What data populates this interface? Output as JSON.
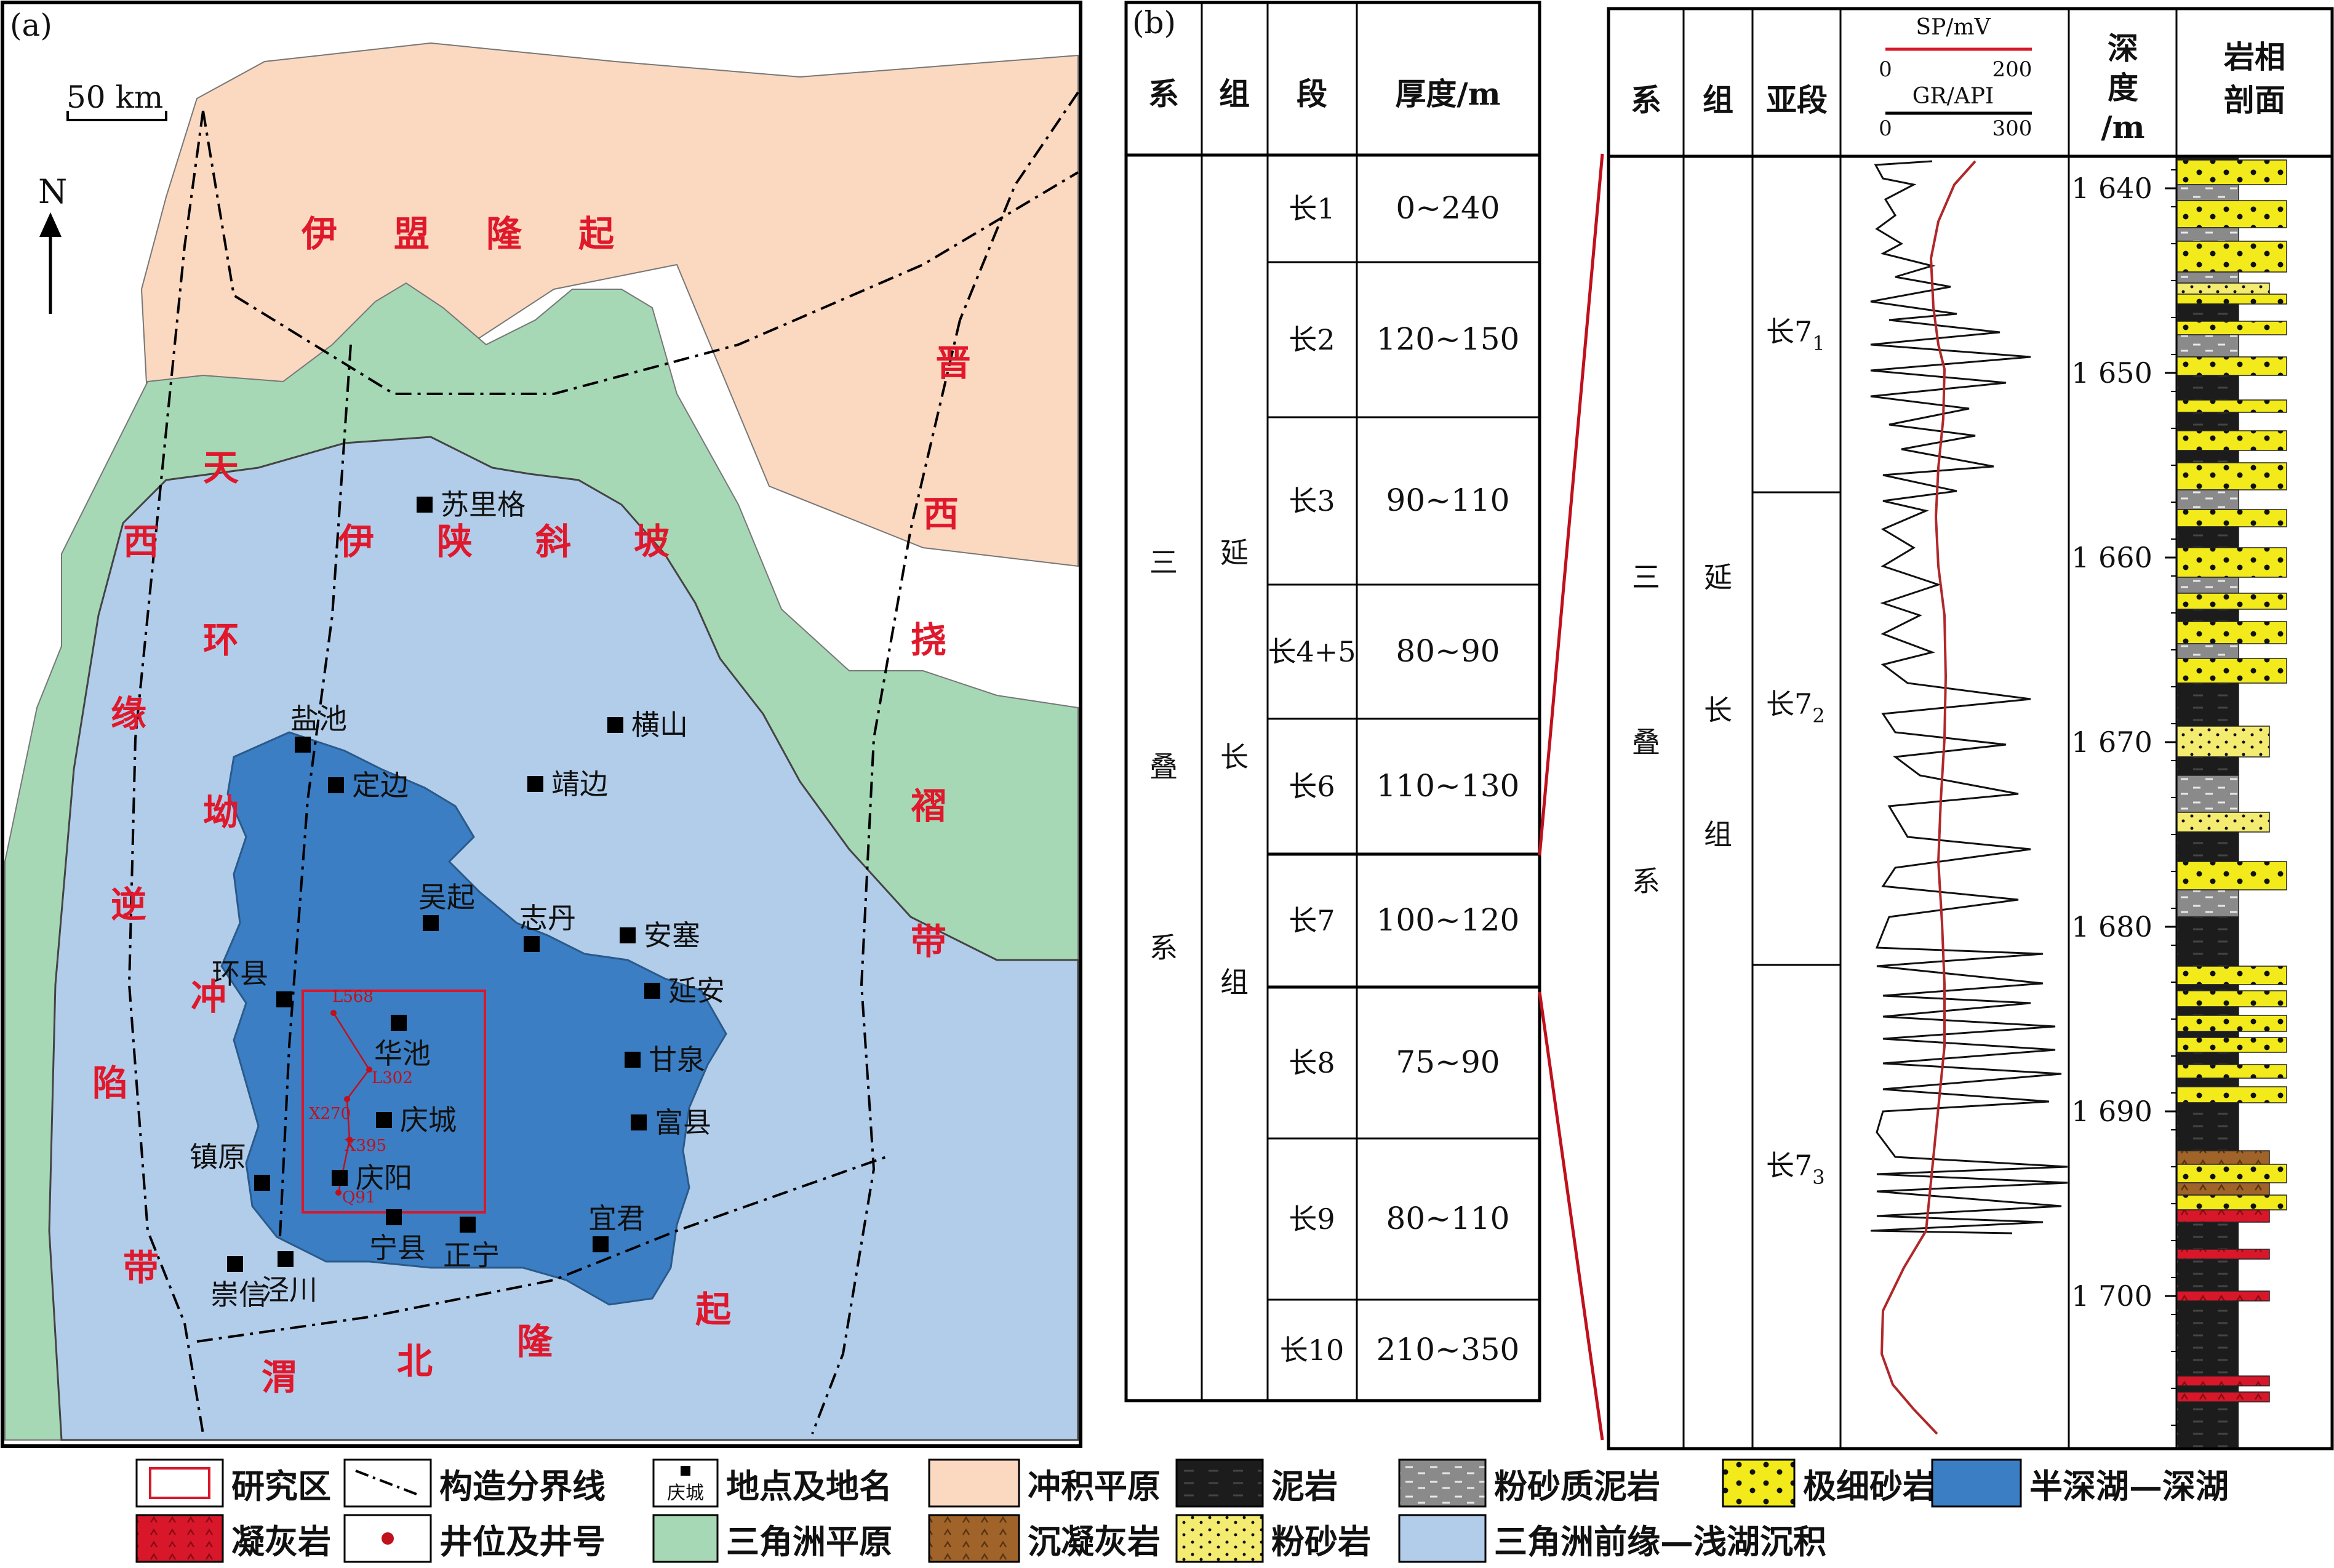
{
  "panel_a": {
    "label": "(a)",
    "scale": "50 km",
    "north": "N",
    "regions": {
      "yimeng": [
        "伊",
        "盟",
        "隆",
        "起"
      ],
      "tianhuan": [
        "天",
        "西",
        "环",
        "缘",
        "坳",
        "逆",
        "冲",
        "陷",
        "带"
      ],
      "yishan": [
        "伊",
        "陕",
        "斜",
        "坡"
      ],
      "jinxi": [
        "晋",
        "西",
        "挠",
        "褶",
        "带"
      ],
      "weibei": [
        "渭",
        "北",
        "隆",
        "起"
      ]
    },
    "places": [
      "苏里格",
      "盐池",
      "定边",
      "靖边",
      "横山",
      "吴起",
      "志丹",
      "安塞",
      "延安",
      "环县",
      "华池",
      "甘泉",
      "庆城",
      "富县",
      "镇原",
      "庆阳",
      "宜君",
      "宁县",
      "正宁",
      "崇信",
      "泾川"
    ],
    "wells": [
      "L568",
      "L302",
      "X270",
      "X395",
      "Q91"
    ]
  },
  "panel_b": {
    "label": "(b)",
    "headers": [
      "系",
      "组",
      "段",
      "厚度/m"
    ],
    "system": [
      "三",
      "叠",
      "系"
    ],
    "formation": [
      "延",
      "长",
      "组"
    ],
    "rows": [
      {
        "seg": "长1",
        "thick": "0~240"
      },
      {
        "seg": "长2",
        "thick": "120~150"
      },
      {
        "seg": "长3",
        "thick": "90~110"
      },
      {
        "seg": "长4+5",
        "thick": "80~90"
      },
      {
        "seg": "长6",
        "thick": "110~130"
      },
      {
        "seg": "长7",
        "thick": "100~120"
      },
      {
        "seg": "长8",
        "thick": "75~90"
      },
      {
        "seg": "长9",
        "thick": "80~110"
      },
      {
        "seg": "长10",
        "thick": "210~350"
      }
    ]
  },
  "panel_c": {
    "headers": {
      "sys": "系",
      "form": "组",
      "sub": "亚段",
      "depth": [
        "深",
        "度",
        "/m"
      ],
      "litho": [
        "岩相",
        "剖面"
      ]
    },
    "sp_label": "SP/mV",
    "sp_range": [
      "0",
      "200"
    ],
    "gr_label": "GR/API",
    "gr_range": [
      "0",
      "300"
    ],
    "system": [
      "三",
      "叠",
      "系"
    ],
    "formation": [
      "延",
      "长",
      "组"
    ],
    "subs": [
      {
        "name": "长7",
        "sub": "1"
      },
      {
        "name": "长7",
        "sub": "2"
      },
      {
        "name": "长7",
        "sub": "3"
      }
    ],
    "depths": [
      "1 640",
      "1 650",
      "1 660",
      "1 670",
      "1 680",
      "1 690",
      "1 700"
    ]
  },
  "legend": [
    {
      "label": "研究区",
      "icon": "study-area-icon"
    },
    {
      "label": "构造分界线",
      "icon": "boundary-line-icon"
    },
    {
      "label": "地点及地名",
      "icon": "place-icon",
      "icon_text": "庆城"
    },
    {
      "label": "冲积平原",
      "icon": "alluvial-plain-swatch",
      "color": "#fbd8c0"
    },
    {
      "label": "泥岩",
      "icon": "mudstone-swatch",
      "color": "#1c1c1c"
    },
    {
      "label": "粉砂质泥岩",
      "icon": "silty-mudstone-swatch",
      "color": "#8a8a8a"
    },
    {
      "label": "极细砂岩",
      "icon": "very-fine-sandstone-swatch",
      "color": "#f2ea1a"
    },
    {
      "label": "半深湖—深湖",
      "icon": "deep-lake-swatch",
      "color": "#3b7ec4"
    },
    {
      "label": "凝灰岩",
      "icon": "tuff-swatch",
      "color": "#d8182a"
    },
    {
      "label": "井位及井号",
      "icon": "well-icon"
    },
    {
      "label": "三角洲平原",
      "icon": "delta-plain-swatch",
      "color": "#a6d8b6"
    },
    {
      "label": "沉凝灰岩",
      "icon": "tuffite-swatch",
      "color": "#a0642a"
    },
    {
      "label": "粉砂岩",
      "icon": "siltstone-swatch",
      "color": "#f4ec70"
    },
    {
      "label": "三角洲前缘—浅湖沉积",
      "icon": "delta-front-swatch",
      "color": "#b2cdea"
    }
  ]
}
